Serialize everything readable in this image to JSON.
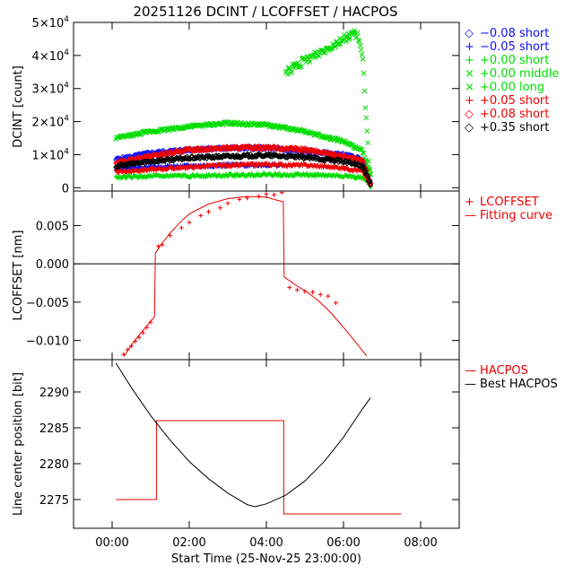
{
  "title": "20251126 DCINT / LCOFFSET / HACPOS",
  "x_axis": {
    "label": "Start Time (25-Nov-25 23:00:00)",
    "range_hours": [
      -1,
      9
    ],
    "ticks": [
      {
        "v": 0,
        "label": "00:00"
      },
      {
        "v": 2,
        "label": "02:00"
      },
      {
        "v": 4,
        "label": "04:00"
      },
      {
        "v": 6,
        "label": "06:00"
      },
      {
        "v": 8,
        "label": "08:00"
      }
    ]
  },
  "panels": {
    "dcint": {
      "ylabel": "DCINT [count]",
      "ylim": [
        -1000,
        50000
      ],
      "yticks": [
        {
          "v": 0,
          "label": "0",
          "sup": ""
        },
        {
          "v": 10000,
          "label": "1×10",
          "sup": "4"
        },
        {
          "v": 20000,
          "label": "2×10",
          "sup": "4"
        },
        {
          "v": 30000,
          "label": "3×10",
          "sup": "4"
        },
        {
          "v": 40000,
          "label": "4×10",
          "sup": "4"
        },
        {
          "v": 50000,
          "label": "5×10",
          "sup": "4"
        }
      ],
      "legend": [
        {
          "symbol": "◇",
          "label": "−0.08 short",
          "color": "#1010ff"
        },
        {
          "symbol": "+",
          "label": "−0.05 short",
          "color": "#1010ff"
        },
        {
          "symbol": "+",
          "label": "+0.00 short",
          "color": "#00dd00"
        },
        {
          "symbol": "×",
          "label": "+0.00 middle",
          "color": "#00dd00"
        },
        {
          "symbol": "×",
          "label": "+0.00 long",
          "color": "#00dd00"
        },
        {
          "symbol": "+",
          "label": "+0.05 short",
          "color": "#ee0000"
        },
        {
          "symbol": "◇",
          "label": "+0.08 short",
          "color": "#ee0000"
        },
        {
          "symbol": "◇",
          "label": "+0.35 short",
          "color": "#000000"
        }
      ]
    },
    "lcoffset": {
      "ylabel": "LCOFFSET [nm]",
      "ylim": [
        -0.0125,
        0.0095
      ],
      "yticks": [
        {
          "v": -0.01,
          "label": "−0.010"
        },
        {
          "v": -0.005,
          "label": "−0.005"
        },
        {
          "v": 0,
          "label": "0.000"
        },
        {
          "v": 0.005,
          "label": "0.005"
        }
      ],
      "legend": [
        {
          "symbol": "+",
          "label": "LCOFFSET",
          "color": "#ee0000"
        },
        {
          "symbol": "—",
          "label": "Fitting curve",
          "color": "#ee0000"
        }
      ]
    },
    "hacpos": {
      "ylabel": "Line center position [bit]",
      "ylim": [
        2271,
        2294.5
      ],
      "yticks": [
        {
          "v": 2275,
          "label": "2275"
        },
        {
          "v": 2280,
          "label": "2280"
        },
        {
          "v": 2285,
          "label": "2285"
        },
        {
          "v": 2290,
          "label": "2290"
        }
      ],
      "legend": [
        {
          "symbol": "—",
          "label": "HACPOS",
          "color": "#ee0000"
        },
        {
          "symbol": "—",
          "label": "Best HACPOS",
          "color": "#000000"
        }
      ]
    }
  },
  "chart_data": [
    {
      "type": "scatter",
      "title": "20251126 DCINT / LCOFFSET / HACPOS",
      "ylabel": "DCINT [count]",
      "xlabel": "Start Time (25-Nov-25 23:00:00)",
      "x_unit": "hours",
      "ylim": [
        -1000,
        50000
      ],
      "series": [
        {
          "name": "−0.08 short",
          "color": "#1010ff",
          "marker": "diamond",
          "x": [
            0.1,
            1.0,
            2.0,
            3.0,
            4.0,
            4.5,
            5.0,
            5.5,
            6.0,
            6.5,
            6.7
          ],
          "y": [
            8500,
            10500,
            11500,
            12000,
            12000,
            11500,
            11000,
            10500,
            10000,
            8500,
            1500
          ]
        },
        {
          "name": "−0.05 short",
          "color": "#1010ff",
          "marker": "plus",
          "x": [
            0.1,
            1.0,
            2.0,
            3.0,
            4.0,
            4.4
          ],
          "y": [
            5800,
            6200,
            6500,
            6800,
            6900,
            6800
          ]
        },
        {
          "name": "+0.00 short",
          "color": "#00dd00",
          "marker": "plus",
          "x": [
            0.1,
            1.0,
            2.0,
            3.0,
            4.0,
            5.0,
            6.0,
            6.5,
            6.7
          ],
          "y": [
            3200,
            3400,
            3600,
            3800,
            4000,
            3900,
            3600,
            3000,
            500
          ]
        },
        {
          "name": "+0.00 middle",
          "color": "#00dd00",
          "marker": "x",
          "x": [
            4.5,
            6.3,
            6.4,
            6.5,
            6.55,
            6.6,
            6.65,
            6.7
          ],
          "y": [
            35000,
            47000,
            45000,
            38000,
            28000,
            20000,
            10000,
            3000
          ]
        },
        {
          "name": "+0.00 long",
          "color": "#00dd00",
          "marker": "x",
          "x": [
            0.1,
            1.0,
            2.0,
            3.0,
            4.0,
            5.0,
            6.0,
            6.5,
            6.7
          ],
          "y": [
            15000,
            17000,
            18500,
            19500,
            19000,
            17000,
            14000,
            11000,
            4000
          ]
        },
        {
          "name": "+0.05 short",
          "color": "#ee0000",
          "marker": "plus",
          "x": [
            0.1,
            1.0,
            2.0,
            3.0,
            4.0,
            5.0,
            6.0,
            6.5,
            6.7
          ],
          "y": [
            4800,
            5500,
            6200,
            6800,
            7000,
            6800,
            6000,
            5000,
            500
          ]
        },
        {
          "name": "+0.08 short",
          "color": "#ee0000",
          "marker": "diamond",
          "x": [
            0.1,
            1.0,
            2.0,
            3.0,
            4.0,
            5.0,
            6.0,
            6.5,
            6.7
          ],
          "y": [
            7500,
            9500,
            11500,
            12000,
            12200,
            11500,
            9500,
            8000,
            1000
          ]
        },
        {
          "name": "+0.35 short",
          "color": "#000000",
          "marker": "diamond",
          "x": [
            0.1,
            1.0,
            2.0,
            3.0,
            4.0,
            5.0,
            6.0,
            6.5,
            6.7
          ],
          "y": [
            6500,
            8000,
            9000,
            9500,
            9800,
            9200,
            8000,
            6500,
            1200
          ]
        }
      ]
    },
    {
      "type": "scatter",
      "ylabel": "LCOFFSET [nm]",
      "xlabel": "Start Time (25-Nov-25 23:00:00)",
      "x_unit": "hours",
      "ylim": [
        -0.0125,
        0.0095
      ],
      "hline": 0,
      "series": [
        {
          "name": "LCOFFSET",
          "color": "#ee0000",
          "marker": "plus",
          "x": [
            0.3,
            0.4,
            0.5,
            0.6,
            0.7,
            0.8,
            0.9,
            1.0,
            1.2,
            1.3,
            1.5,
            1.8,
            2.0,
            2.3,
            2.5,
            2.8,
            3.0,
            3.3,
            3.5,
            3.8,
            4.0,
            4.2,
            4.4,
            4.6,
            4.8,
            5.0,
            5.2,
            5.4,
            5.6,
            5.8
          ],
          "y": [
            -0.0118,
            -0.0112,
            -0.0107,
            -0.0101,
            -0.0096,
            -0.009,
            -0.0083,
            -0.0076,
            0.0023,
            0.0025,
            0.0037,
            0.0047,
            0.0054,
            0.0063,
            0.0068,
            0.0073,
            0.0079,
            0.0084,
            0.0086,
            0.0088,
            0.0091,
            0.009,
            0.0093,
            -0.0031,
            -0.0034,
            -0.0036,
            -0.0037,
            -0.004,
            -0.0042,
            -0.0051
          ]
        },
        {
          "name": "Fitting curve",
          "color": "#ee0000",
          "line": true,
          "x": [
            0.3,
            0.5,
            0.7,
            0.9,
            1.1,
            1.12,
            1.3,
            1.5,
            1.8,
            2.0,
            2.5,
            3.0,
            3.5,
            4.0,
            4.2,
            4.44,
            4.46,
            4.8,
            5.0,
            5.3,
            5.6,
            5.9,
            6.2,
            6.5,
            6.6
          ],
          "y": [
            -0.0121,
            -0.0106,
            -0.0093,
            -0.0081,
            -0.0069,
            0.0014,
            0.0027,
            0.004,
            0.0056,
            0.0065,
            0.0078,
            0.0085,
            0.0088,
            0.0087,
            0.0084,
            0.0081,
            -0.0017,
            -0.0029,
            -0.0035,
            -0.0046,
            -0.006,
            -0.0077,
            -0.0095,
            -0.0114,
            -0.012
          ]
        }
      ]
    },
    {
      "type": "line",
      "ylabel": "Line center position [bit]",
      "xlabel": "Start Time (25-Nov-25 23:00:00)",
      "x_unit": "hours",
      "ylim": [
        2271,
        2294.5
      ],
      "x_ticks": [
        "00:00",
        "02:00",
        "04:00",
        "06:00",
        "08:00"
      ],
      "series": [
        {
          "name": "HACPOS",
          "color": "#ee0000",
          "step": true,
          "x": [
            0.1,
            1.15,
            1.15,
            4.45,
            4.45,
            7.5
          ],
          "y": [
            2275,
            2275,
            2286,
            2286,
            2273,
            2273
          ]
        },
        {
          "name": "Best HACPOS",
          "color": "#000000",
          "x": [
            0.1,
            0.5,
            1.0,
            1.5,
            2.0,
            2.5,
            3.0,
            3.5,
            3.7,
            4.0,
            4.5,
            5.0,
            5.5,
            6.0,
            6.5,
            6.7
          ],
          "y": [
            2294,
            2290.6,
            2286.7,
            2283.3,
            2280.3,
            2277.9,
            2275.9,
            2274.3,
            2274.0,
            2274.4,
            2275.6,
            2277.6,
            2280.3,
            2283.7,
            2287.7,
            2289.2
          ]
        }
      ]
    }
  ]
}
